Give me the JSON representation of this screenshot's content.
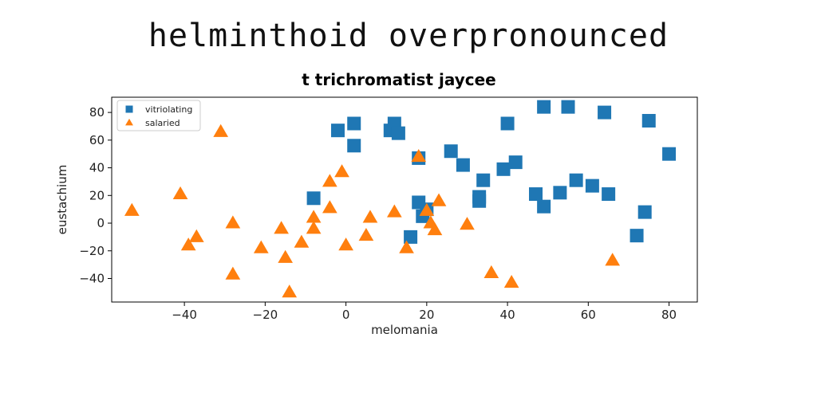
{
  "header": {
    "title": "helminthoid overpronounced"
  },
  "chart_data": {
    "type": "scatter",
    "title": "t trichromatist jaycee",
    "xlabel": "melomania",
    "ylabel": "eustachium",
    "xlim": [
      -58,
      87
    ],
    "ylim": [
      -57,
      91
    ],
    "xticks": [
      -40,
      -20,
      0,
      20,
      40,
      60,
      80
    ],
    "yticks": [
      -40,
      -20,
      0,
      20,
      40,
      60,
      80
    ],
    "xtick_labels": [
      "−40",
      "−20",
      "0",
      "20",
      "40",
      "60",
      "80"
    ],
    "ytick_labels": [
      "−40",
      "−20",
      "0",
      "20",
      "40",
      "60",
      "80"
    ],
    "grid": false,
    "legend_position": "top-left",
    "series": [
      {
        "name": "vitriolating",
        "marker": "square",
        "color": "#1f77b4",
        "points": [
          [
            -8,
            18
          ],
          [
            -2,
            67
          ],
          [
            2,
            72
          ],
          [
            2,
            56
          ],
          [
            11,
            67
          ],
          [
            12,
            72
          ],
          [
            13,
            65
          ],
          [
            18,
            47
          ],
          [
            18,
            15
          ],
          [
            19,
            5
          ],
          [
            20,
            10
          ],
          [
            16,
            -10
          ],
          [
            26,
            52
          ],
          [
            29,
            42
          ],
          [
            33,
            19
          ],
          [
            33,
            16
          ],
          [
            34,
            31
          ],
          [
            39,
            39
          ],
          [
            40,
            72
          ],
          [
            42,
            44
          ],
          [
            47,
            21
          ],
          [
            49,
            12
          ],
          [
            49,
            84
          ],
          [
            53,
            22
          ],
          [
            55,
            84
          ],
          [
            57,
            31
          ],
          [
            61,
            27
          ],
          [
            64,
            80
          ],
          [
            65,
            21
          ],
          [
            72,
            -9
          ],
          [
            74,
            8
          ],
          [
            75,
            74
          ],
          [
            80,
            50
          ]
        ]
      },
      {
        "name": "salaried",
        "marker": "triangle",
        "color": "#ff7f0e",
        "points": [
          [
            -53,
            9
          ],
          [
            -41,
            21
          ],
          [
            -39,
            -16
          ],
          [
            -37,
            -10
          ],
          [
            -31,
            66
          ],
          [
            -28,
            0
          ],
          [
            -28,
            -37
          ],
          [
            -21,
            -18
          ],
          [
            -16,
            -4
          ],
          [
            -15,
            -25
          ],
          [
            -14,
            -50
          ],
          [
            -11,
            -14
          ],
          [
            -8,
            -4
          ],
          [
            -8,
            4
          ],
          [
            -4,
            30
          ],
          [
            -4,
            11
          ],
          [
            -1,
            37
          ],
          [
            0,
            -16
          ],
          [
            5,
            -9
          ],
          [
            6,
            4
          ],
          [
            12,
            8
          ],
          [
            15,
            -18
          ],
          [
            18,
            48
          ],
          [
            20,
            9
          ],
          [
            21,
            0
          ],
          [
            22,
            -5
          ],
          [
            23,
            16
          ],
          [
            30,
            -1
          ],
          [
            36,
            -36
          ],
          [
            41,
            -43
          ],
          [
            66,
            -27
          ]
        ]
      }
    ]
  }
}
